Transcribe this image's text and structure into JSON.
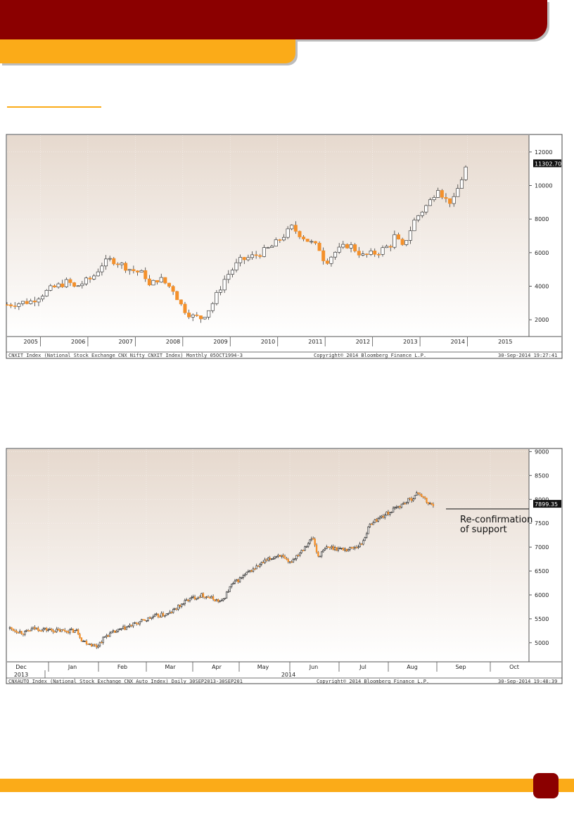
{
  "chart_data": [
    {
      "type": "candlestick",
      "caption_left": "CNXIT Index (National Stock Exchange CNX Nifty CNXIT Index)  Monthly 05OCT1994-3",
      "caption_mid": "Copyright© 2014 Bloomberg Finance L.P.",
      "caption_right": "30-Sep-2014 19:27:41",
      "last_value_label": "11302.70",
      "last_value": 11302.7,
      "ylim": [
        1000,
        13000
      ],
      "yticks": [
        2000,
        4000,
        6000,
        8000,
        10000,
        12000
      ],
      "x_start": 2005.0,
      "x_end": 2016.0,
      "x_labels": [
        "2005",
        "2006",
        "2007",
        "2008",
        "2009",
        "2010",
        "2011",
        "2012",
        "2013",
        "2014",
        "2015"
      ],
      "grid": true,
      "colors": {
        "up": "#ffffff",
        "down": "#f4902a"
      },
      "anchors": [
        [
          2005.0,
          2900
        ],
        [
          2005.5,
          3100
        ],
        [
          2005.9,
          3800
        ],
        [
          2006.3,
          4300
        ],
        [
          2006.4,
          3900
        ],
        [
          2006.8,
          4500
        ],
        [
          2007.0,
          5300
        ],
        [
          2007.2,
          5600
        ],
        [
          2007.6,
          5000
        ],
        [
          2007.9,
          4700
        ],
        [
          2008.0,
          4000
        ],
        [
          2008.2,
          4500
        ],
        [
          2008.5,
          3800
        ],
        [
          2008.7,
          2700
        ],
        [
          2008.9,
          2200
        ],
        [
          2009.1,
          2100
        ],
        [
          2009.3,
          2800
        ],
        [
          2009.6,
          4500
        ],
        [
          2009.9,
          5500
        ],
        [
          2010.3,
          5900
        ],
        [
          2010.6,
          6400
        ],
        [
          2010.9,
          7200
        ],
        [
          2011.0,
          7500
        ],
        [
          2011.3,
          6800
        ],
        [
          2011.6,
          6200
        ],
        [
          2011.7,
          5400
        ],
        [
          2011.9,
          6000
        ],
        [
          2012.2,
          6500
        ],
        [
          2012.5,
          5800
        ],
        [
          2012.8,
          6000
        ],
        [
          2013.1,
          6500
        ],
        [
          2013.2,
          7200
        ],
        [
          2013.3,
          6100
        ],
        [
          2013.6,
          8000
        ],
        [
          2013.9,
          9000
        ],
        [
          2014.1,
          10000
        ],
        [
          2014.2,
          9200
        ],
        [
          2014.4,
          9000
        ],
        [
          2014.5,
          9800
        ],
        [
          2014.7,
          11300
        ]
      ]
    },
    {
      "type": "candlestick",
      "caption_left": "CNXAUTO Index (National Stock Exchange CNX Auto Index)  Daily 30SEP2013-30SEP201",
      "caption_mid": "Copyright© 2014 Bloomberg Finance L.P.",
      "caption_right": "30-Sep-2014 19:48:39",
      "last_value_label": "7899.35",
      "last_value": 7899.35,
      "annotation": "Re-confirmation\nof support",
      "support_level": 7800,
      "ylim": [
        4600,
        9050
      ],
      "yticks": [
        5000,
        5500,
        6000,
        6500,
        7000,
        7500,
        8000,
        8500,
        9000
      ],
      "x_labels": [
        "Dec",
        "Jan",
        "Feb",
        "Mar",
        "Apr",
        "May",
        "Jun",
        "Jul",
        "Aug",
        "Sep",
        "Oct"
      ],
      "x_sublabels": [
        "2013",
        "2014"
      ],
      "grid": true,
      "colors": {
        "up": "#ffffff",
        "down": "#f4902a"
      },
      "anchors": [
        [
          0.0,
          5300
        ],
        [
          0.03,
          5200
        ],
        [
          0.05,
          5300
        ],
        [
          0.1,
          5250
        ],
        [
          0.14,
          5250
        ],
        [
          0.15,
          5050
        ],
        [
          0.18,
          4920
        ],
        [
          0.2,
          5150
        ],
        [
          0.25,
          5350
        ],
        [
          0.3,
          5550
        ],
        [
          0.33,
          5600
        ],
        [
          0.37,
          5900
        ],
        [
          0.4,
          6000
        ],
        [
          0.44,
          5850
        ],
        [
          0.46,
          6200
        ],
        [
          0.5,
          6500
        ],
        [
          0.53,
          6700
        ],
        [
          0.56,
          6850
        ],
        [
          0.58,
          6650
        ],
        [
          0.63,
          7200
        ],
        [
          0.64,
          6800
        ],
        [
          0.66,
          7000
        ],
        [
          0.7,
          6950
        ],
        [
          0.73,
          7050
        ],
        [
          0.75,
          7500
        ],
        [
          0.8,
          7800
        ],
        [
          0.84,
          8050
        ],
        [
          0.85,
          8150
        ],
        [
          0.87,
          7900
        ],
        [
          0.88,
          7900
        ]
      ]
    }
  ]
}
